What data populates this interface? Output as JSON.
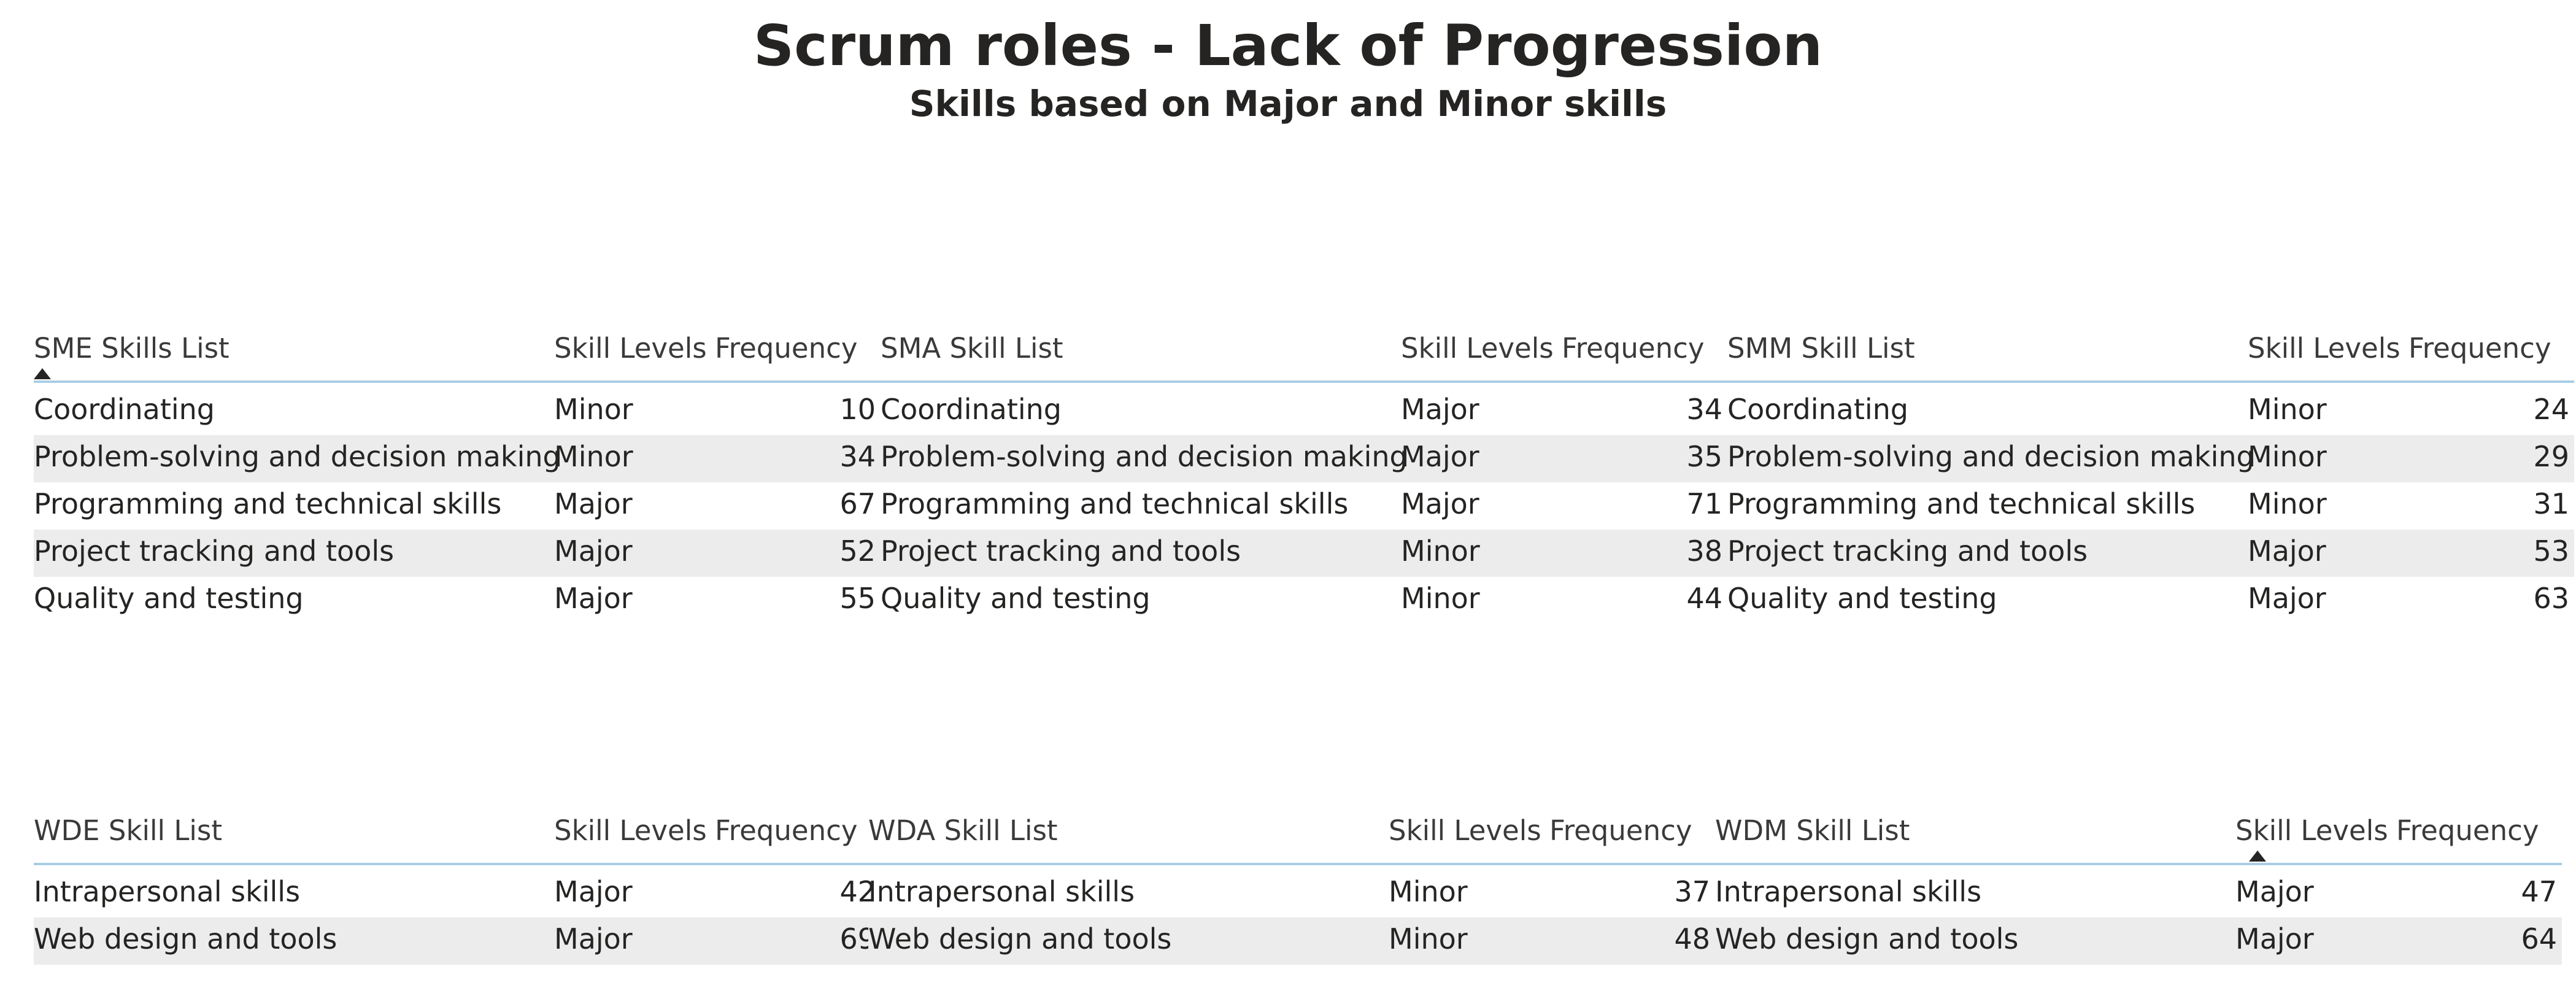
{
  "title": "Scrum roles - Lack of Progression",
  "subtitle": "Skills based on Major and Minor skills",
  "tables": [
    {
      "headers": [
        "SME Skills List",
        "Skill Levels",
        "Frequency"
      ],
      "sort_column": 0,
      "rows": [
        [
          "Coordinating",
          "Minor",
          "10"
        ],
        [
          "Problem-solving and decision making",
          "Minor",
          "34"
        ],
        [
          "Programming and technical skills",
          "Major",
          "67"
        ],
        [
          "Project tracking and tools",
          "Major",
          "52"
        ],
        [
          "Quality and testing",
          "Major",
          "55"
        ]
      ]
    },
    {
      "headers": [
        "SMA Skill List",
        "Skill Levels",
        "Frequency"
      ],
      "rows": [
        [
          "Coordinating",
          "Major",
          "34"
        ],
        [
          "Problem-solving and decision making",
          "Major",
          "35"
        ],
        [
          "Programming and technical skills",
          "Major",
          "71"
        ],
        [
          "Project tracking and tools",
          "Minor",
          "38"
        ],
        [
          "Quality and testing",
          "Minor",
          "44"
        ]
      ]
    },
    {
      "headers": [
        "SMM Skill List",
        "Skill Levels",
        "Frequency"
      ],
      "rows": [
        [
          "Coordinating",
          "Minor",
          "24"
        ],
        [
          "Problem-solving and decision making",
          "Minor",
          "29"
        ],
        [
          "Programming and technical skills",
          "Minor",
          "31"
        ],
        [
          "Project tracking and tools",
          "Major",
          "53"
        ],
        [
          "Quality and testing",
          "Major",
          "63"
        ]
      ]
    },
    {
      "headers": [
        "WDE Skill List",
        "Skill Levels",
        "Frequency"
      ],
      "rows": [
        [
          "Intrapersonal skills",
          "Major",
          "42"
        ],
        [
          "Web design and tools",
          "Major",
          "69"
        ]
      ]
    },
    {
      "headers": [
        "WDA Skill List",
        "Skill Levels",
        "Frequency"
      ],
      "rows": [
        [
          "Intrapersonal skills",
          "Minor",
          "37"
        ],
        [
          "Web design and tools",
          "Minor",
          "48"
        ]
      ]
    },
    {
      "headers": [
        "WDM Skill List",
        "Skill Levels",
        "Frequency"
      ],
      "sort_column": 1,
      "rows": [
        [
          "Intrapersonal skills",
          "Major",
          "47"
        ],
        [
          "Web design and tools",
          "Major",
          "64"
        ]
      ]
    }
  ]
}
